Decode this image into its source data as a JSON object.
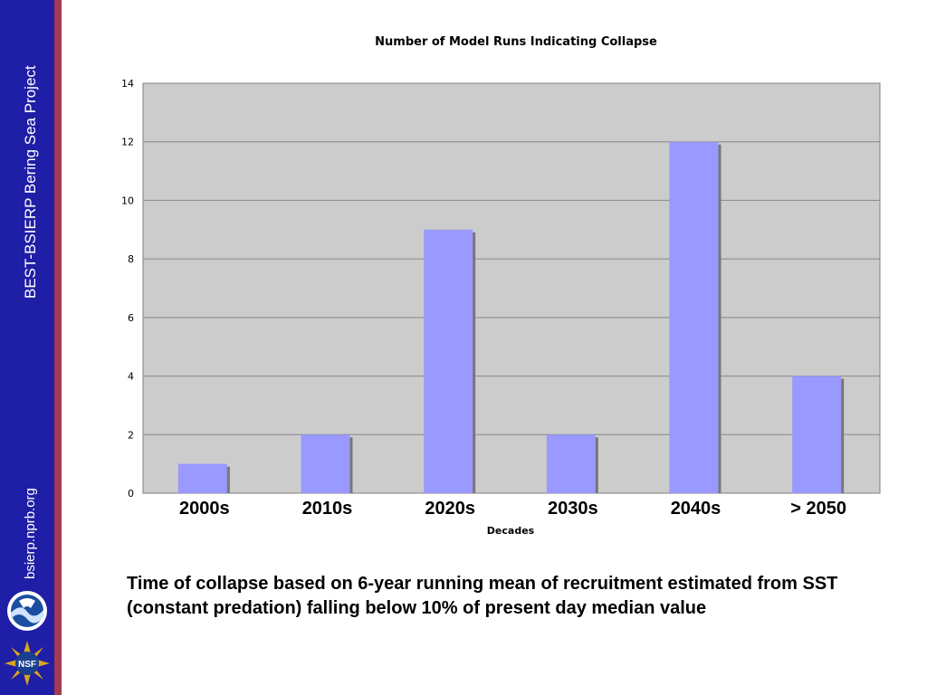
{
  "sidebar": {
    "project_title": "BEST-BSIERP Bering Sea Project",
    "site_url": "bsierp.nprb.org",
    "logos": [
      "noaa-logo",
      "nsf-logo"
    ],
    "nsf_label": "NSF",
    "colors": {
      "sidebar": "#1f1ea6",
      "stripe": "#a23a52"
    }
  },
  "chart_data": {
    "type": "bar",
    "title": "Number of Model Runs Indicating Collapse",
    "xlabel": "Decades",
    "ylabel": "",
    "categories": [
      "2000s",
      "2010s",
      "2020s",
      "2030s",
      "2040s",
      "> 2050"
    ],
    "values": [
      1,
      2,
      9,
      2,
      12,
      4
    ],
    "ylim": [
      0,
      14
    ],
    "yticks": [
      0,
      2,
      4,
      6,
      8,
      10,
      12,
      14
    ],
    "grid": true,
    "legend": "none",
    "colors": {
      "bar": "#9999ff",
      "plot_bg": "#cccccc",
      "grid": "#888888"
    }
  },
  "caption": "Time of collapse based on 6-year running mean of recruitment estimated from SST (constant predation) falling below 10% of present day median value"
}
